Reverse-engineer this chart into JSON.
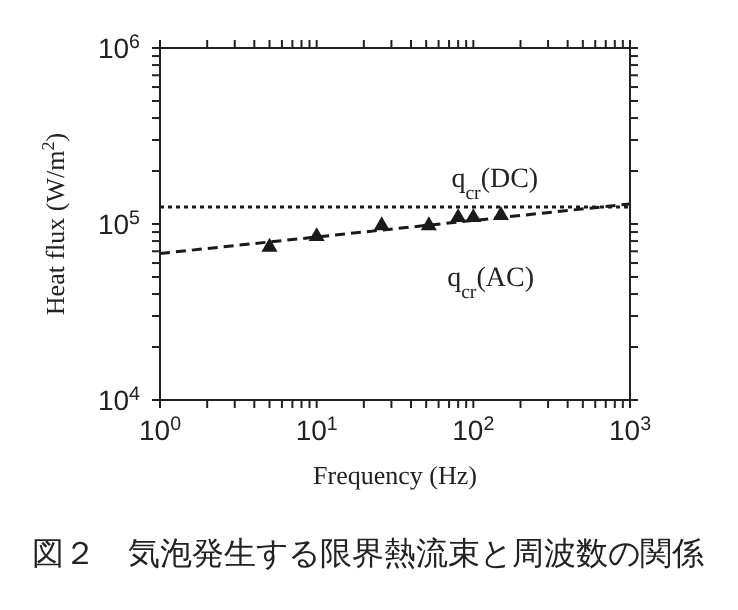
{
  "chart_data": {
    "type": "scatter",
    "title": "図２　気泡発生する限界熱流束と周波数の関係",
    "xlabel": "Frequency (Hz)",
    "ylabel": "Heat flux (W/m$^{2}$)",
    "log": "xy",
    "xlim": [
      1,
      1000
    ],
    "ylim": [
      10000,
      1000000
    ],
    "xticks": [
      {
        "value": 1,
        "label": "10$^{0}$"
      },
      {
        "value": 2,
        "label": null
      },
      {
        "value": 3,
        "label": null
      },
      {
        "value": 4,
        "label": null
      },
      {
        "value": 5,
        "label": null
      },
      {
        "value": 6,
        "label": null
      },
      {
        "value": 7,
        "label": null
      },
      {
        "value": 8,
        "label": null
      },
      {
        "value": 9,
        "label": null
      },
      {
        "value": 10,
        "label": "10$^{1}$"
      },
      {
        "value": 20,
        "label": null
      },
      {
        "value": 30,
        "label": null
      },
      {
        "value": 40,
        "label": null
      },
      {
        "value": 50,
        "label": null
      },
      {
        "value": 60,
        "label": null
      },
      {
        "value": 70,
        "label": null
      },
      {
        "value": 80,
        "label": null
      },
      {
        "value": 90,
        "label": null
      },
      {
        "value": 100,
        "label": "10$^{2}$"
      },
      {
        "value": 200,
        "label": null
      },
      {
        "value": 300,
        "label": null
      },
      {
        "value": 400,
        "label": null
      },
      {
        "value": 500,
        "label": null
      },
      {
        "value": 600,
        "label": null
      },
      {
        "value": 700,
        "label": null
      },
      {
        "value": 800,
        "label": null
      },
      {
        "value": 900,
        "label": null
      },
      {
        "value": 1000,
        "label": "10$^{3}$"
      }
    ],
    "yticks": [
      {
        "value": 10000,
        "label": "10$^{4}$"
      },
      {
        "value": 20000,
        "label": null
      },
      {
        "value": 30000,
        "label": null
      },
      {
        "value": 40000,
        "label": null
      },
      {
        "value": 50000,
        "label": null
      },
      {
        "value": 60000,
        "label": null
      },
      {
        "value": 70000,
        "label": null
      },
      {
        "value": 80000,
        "label": null
      },
      {
        "value": 90000,
        "label": null
      },
      {
        "value": 100000,
        "label": "10$^{5}$"
      },
      {
        "value": 200000,
        "label": null
      },
      {
        "value": 300000,
        "label": null
      },
      {
        "value": 400000,
        "label": null
      },
      {
        "value": 500000,
        "label": null
      },
      {
        "value": 600000,
        "label": null
      },
      {
        "value": 700000,
        "label": null
      },
      {
        "value": 800000,
        "label": null
      },
      {
        "value": 900000,
        "label": null
      },
      {
        "value": 1000000,
        "label": "10$^{6}$"
      }
    ],
    "series": [
      {
        "marker": "triangle",
        "color": "#1a1a1a",
        "x": [
          5,
          10,
          26,
          52,
          80,
          100,
          150
        ],
        "values": [
          74000,
          85000,
          98000,
          98000,
          109000,
          109000,
          112000
        ]
      },
      {
        "type": "line",
        "name": "q$_{cr}$(AC)",
        "marker": "none",
        "line_style": "dashed",
        "color": "#1a1a1a",
        "x": [
          1,
          1000
        ],
        "values": [
          68000,
          130000
        ]
      }
    ],
    "ref_lines": [
      {
        "axis": "y",
        "value": 125000,
        "label": "q$_{cr}$(DC)",
        "line_style": "dotted",
        "color": "#1a1a1a"
      }
    ]
  }
}
